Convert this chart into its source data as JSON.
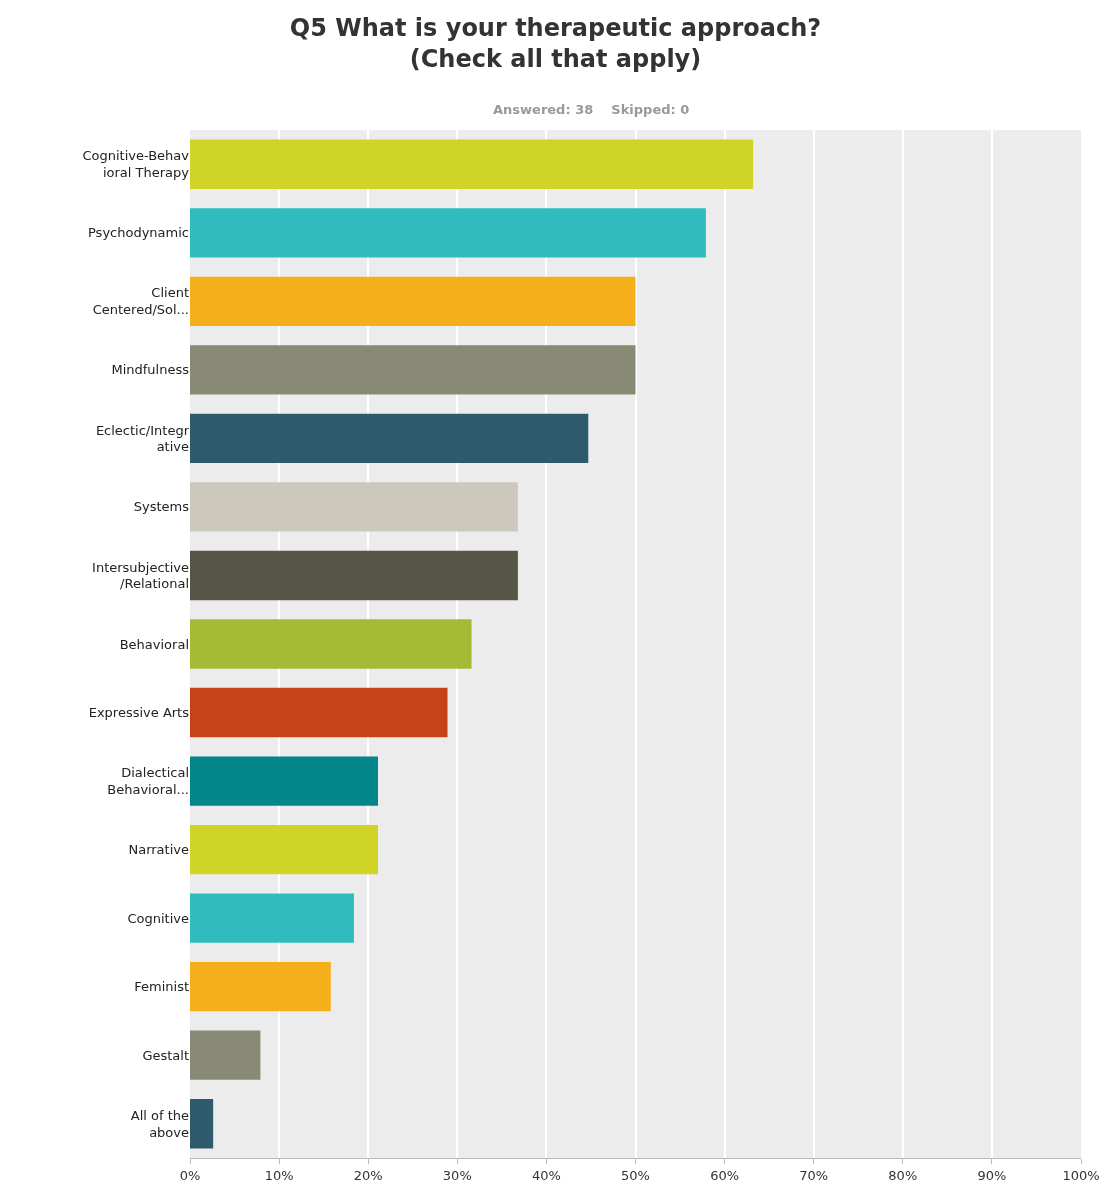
{
  "chart_data": {
    "type": "bar",
    "orientation": "horizontal",
    "title": "Q5 What is your therapeutic approach?\n(Check all that apply)",
    "subtitle": "Answered: 38    Skipped: 0",
    "categories": [
      "Cognitive-Behav\nioral Therapy",
      "Psychodynamic",
      "Client\nCentered/Sol...",
      "Mindfulness",
      "Eclectic/Integr\native",
      "Systems",
      "Intersubjective\n/Relational",
      "Behavioral",
      "Expressive Arts",
      "Dialectical\nBehavioral...",
      "Narrative",
      "Cognitive",
      "Feminist",
      "Gestalt",
      "All of the\nabove"
    ],
    "values": [
      63.2,
      57.9,
      50.0,
      50.0,
      44.7,
      36.8,
      36.8,
      31.6,
      28.9,
      21.1,
      21.1,
      18.4,
      15.8,
      7.9,
      2.6
    ],
    "colors": [
      "#d0d426",
      "#32bbbf",
      "#f4af1b",
      "#888a76",
      "#2e5b6b",
      "#ccc9bc",
      "#575546",
      "#a6bb35",
      "#c64218",
      "#03868a",
      "#d0d426",
      "#32bbbf",
      "#f4af1b",
      "#888a76",
      "#2e5b6b"
    ],
    "xlim": [
      0,
      100
    ],
    "xticks": [
      {
        "value": 0,
        "label": "0%"
      },
      {
        "value": 10,
        "label": "10%"
      },
      {
        "value": 20,
        "label": "20%"
      },
      {
        "value": 30,
        "label": "30%"
      },
      {
        "value": 40,
        "label": "40%"
      },
      {
        "value": 50,
        "label": "50%"
      },
      {
        "value": 60,
        "label": "60%"
      },
      {
        "value": 70,
        "label": "70%"
      },
      {
        "value": 80,
        "label": "80%"
      },
      {
        "value": 90,
        "label": "90%"
      },
      {
        "value": 100,
        "label": "100%"
      }
    ],
    "grid": "x"
  }
}
